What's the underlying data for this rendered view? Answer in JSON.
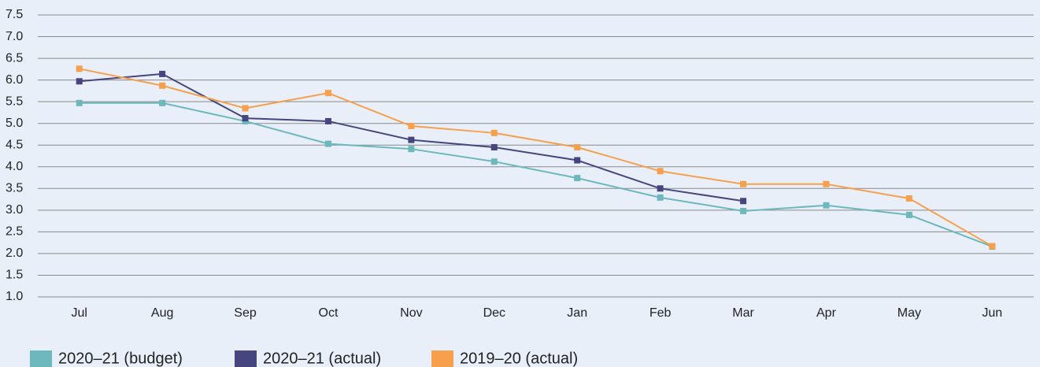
{
  "chart_data": {
    "type": "line",
    "categories": [
      "Jul",
      "Aug",
      "Sep",
      "Oct",
      "Nov",
      "Dec",
      "Jan",
      "Feb",
      "Mar",
      "Apr",
      "May",
      "Jun"
    ],
    "series": [
      {
        "name": "2020–21 (budget)",
        "color": "#6cb8bd",
        "values": [
          5.47,
          5.47,
          5.05,
          4.53,
          4.41,
          4.12,
          3.74,
          3.29,
          2.98,
          3.11,
          2.89,
          2.16
        ]
      },
      {
        "name": "2020–21 (actual)",
        "color": "#45467f",
        "values": [
          5.97,
          6.14,
          5.12,
          5.05,
          4.62,
          4.45,
          4.15,
          3.5,
          3.21,
          null,
          null,
          null
        ]
      },
      {
        "name": "2019–20 (actual)",
        "color": "#f6a04d",
        "values": [
          6.26,
          5.87,
          5.35,
          5.7,
          4.94,
          4.78,
          4.45,
          3.9,
          3.6,
          3.6,
          3.27,
          2.17
        ]
      }
    ],
    "ylim": [
      1,
      7.5
    ],
    "yticks": [
      {
        "value": 1,
        "label": "1.0"
      },
      1.5,
      {
        "value": 2,
        "label": "2.0"
      },
      2.5,
      {
        "value": 3,
        "label": "3.0"
      },
      3.5,
      {
        "value": 4,
        "label": "4.0"
      },
      4.5,
      {
        "value": 5,
        "label": "5.0"
      },
      5.5,
      {
        "value": 6,
        "label": "6.0"
      },
      6.5,
      {
        "value": 7,
        "label": "7.0"
      },
      7.5
    ],
    "grid": true,
    "legend": "bottom"
  }
}
